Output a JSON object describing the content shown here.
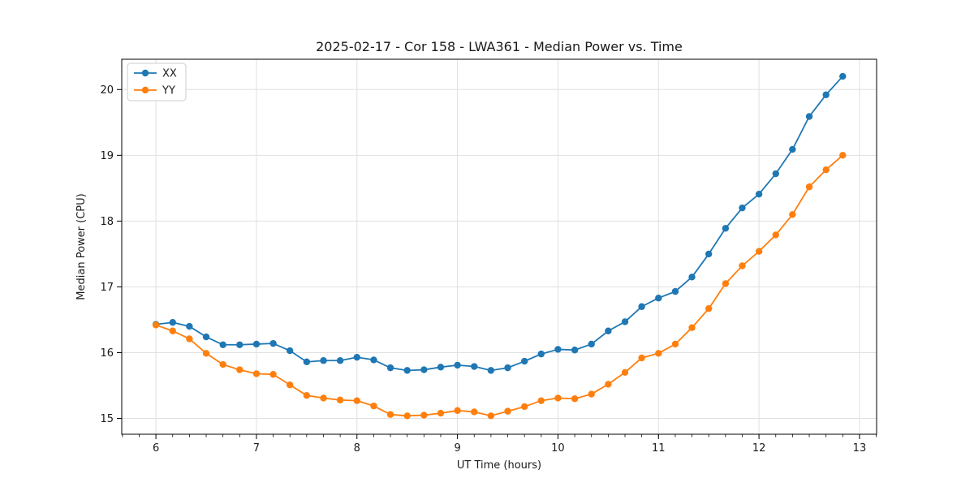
{
  "figure": {
    "title": "2025-02-17 - Cor 158 - LWA361 - Median Power vs. Time",
    "xlabel": "UT Time (hours)",
    "ylabel": "Median Power (CPU)"
  },
  "legend": {
    "position": "upper left",
    "entries": [
      {
        "label": "XX",
        "color": "#1f77b4"
      },
      {
        "label": "YY",
        "color": "#ff7f0e"
      }
    ]
  },
  "colors": {
    "series_xx": "#1f77b4",
    "series_yy": "#ff7f0e",
    "grid": "#e0e0e0",
    "spine": "#000000",
    "legend_border": "#cccccc",
    "legend_bg": "#ffffff"
  },
  "chart_data": {
    "type": "line",
    "title": "2025-02-17 - Cor 158 - LWA361 - Median Power vs. Time",
    "xlabel": "UT Time (hours)",
    "ylabel": "Median Power (CPU)",
    "xlim": [
      5.66,
      13.17
    ],
    "ylim": [
      14.76,
      20.46
    ],
    "xticks": [
      6,
      7,
      8,
      9,
      10,
      11,
      12,
      13
    ],
    "yticks": [
      15,
      16,
      17,
      18,
      19,
      20
    ],
    "x_minor_step": 0.1666667,
    "grid": true,
    "legend_position": "upper left",
    "marker": "circle",
    "marker_radius": 4.2,
    "line_width": 1.8,
    "x": [
      6.0,
      6.167,
      6.333,
      6.5,
      6.667,
      6.833,
      7.0,
      7.167,
      7.333,
      7.5,
      7.667,
      7.833,
      8.0,
      8.167,
      8.333,
      8.5,
      8.667,
      8.833,
      9.0,
      9.167,
      9.333,
      9.5,
      9.667,
      9.833,
      10.0,
      10.167,
      10.333,
      10.5,
      10.667,
      10.833,
      11.0,
      11.167,
      11.333,
      11.5,
      11.667,
      11.833,
      12.0,
      12.167,
      12.333,
      12.5,
      12.667,
      12.833
    ],
    "series": [
      {
        "name": "XX",
        "color": "#1f77b4",
        "values": [
          16.43,
          16.46,
          16.4,
          16.24,
          16.12,
          16.12,
          16.13,
          16.14,
          16.03,
          15.86,
          15.88,
          15.88,
          15.93,
          15.89,
          15.77,
          15.73,
          15.74,
          15.78,
          15.81,
          15.79,
          15.73,
          15.77,
          15.87,
          15.98,
          16.05,
          16.04,
          16.13,
          16.33,
          16.47,
          16.7,
          16.83,
          16.93,
          17.15,
          17.5,
          17.89,
          18.2,
          18.41,
          18.72,
          19.09,
          19.59,
          19.92,
          20.2
        ]
      },
      {
        "name": "YY",
        "color": "#ff7f0e",
        "values": [
          16.42,
          16.33,
          16.21,
          15.99,
          15.82,
          15.74,
          15.68,
          15.67,
          15.51,
          15.35,
          15.31,
          15.28,
          15.27,
          15.19,
          15.06,
          15.04,
          15.05,
          15.08,
          15.12,
          15.1,
          15.04,
          15.11,
          15.18,
          15.27,
          15.31,
          15.3,
          15.37,
          15.52,
          15.7,
          15.92,
          15.99,
          16.13,
          16.38,
          16.67,
          17.05,
          17.32,
          17.54,
          17.79,
          18.1,
          18.52,
          18.78,
          19.0
        ]
      }
    ]
  }
}
